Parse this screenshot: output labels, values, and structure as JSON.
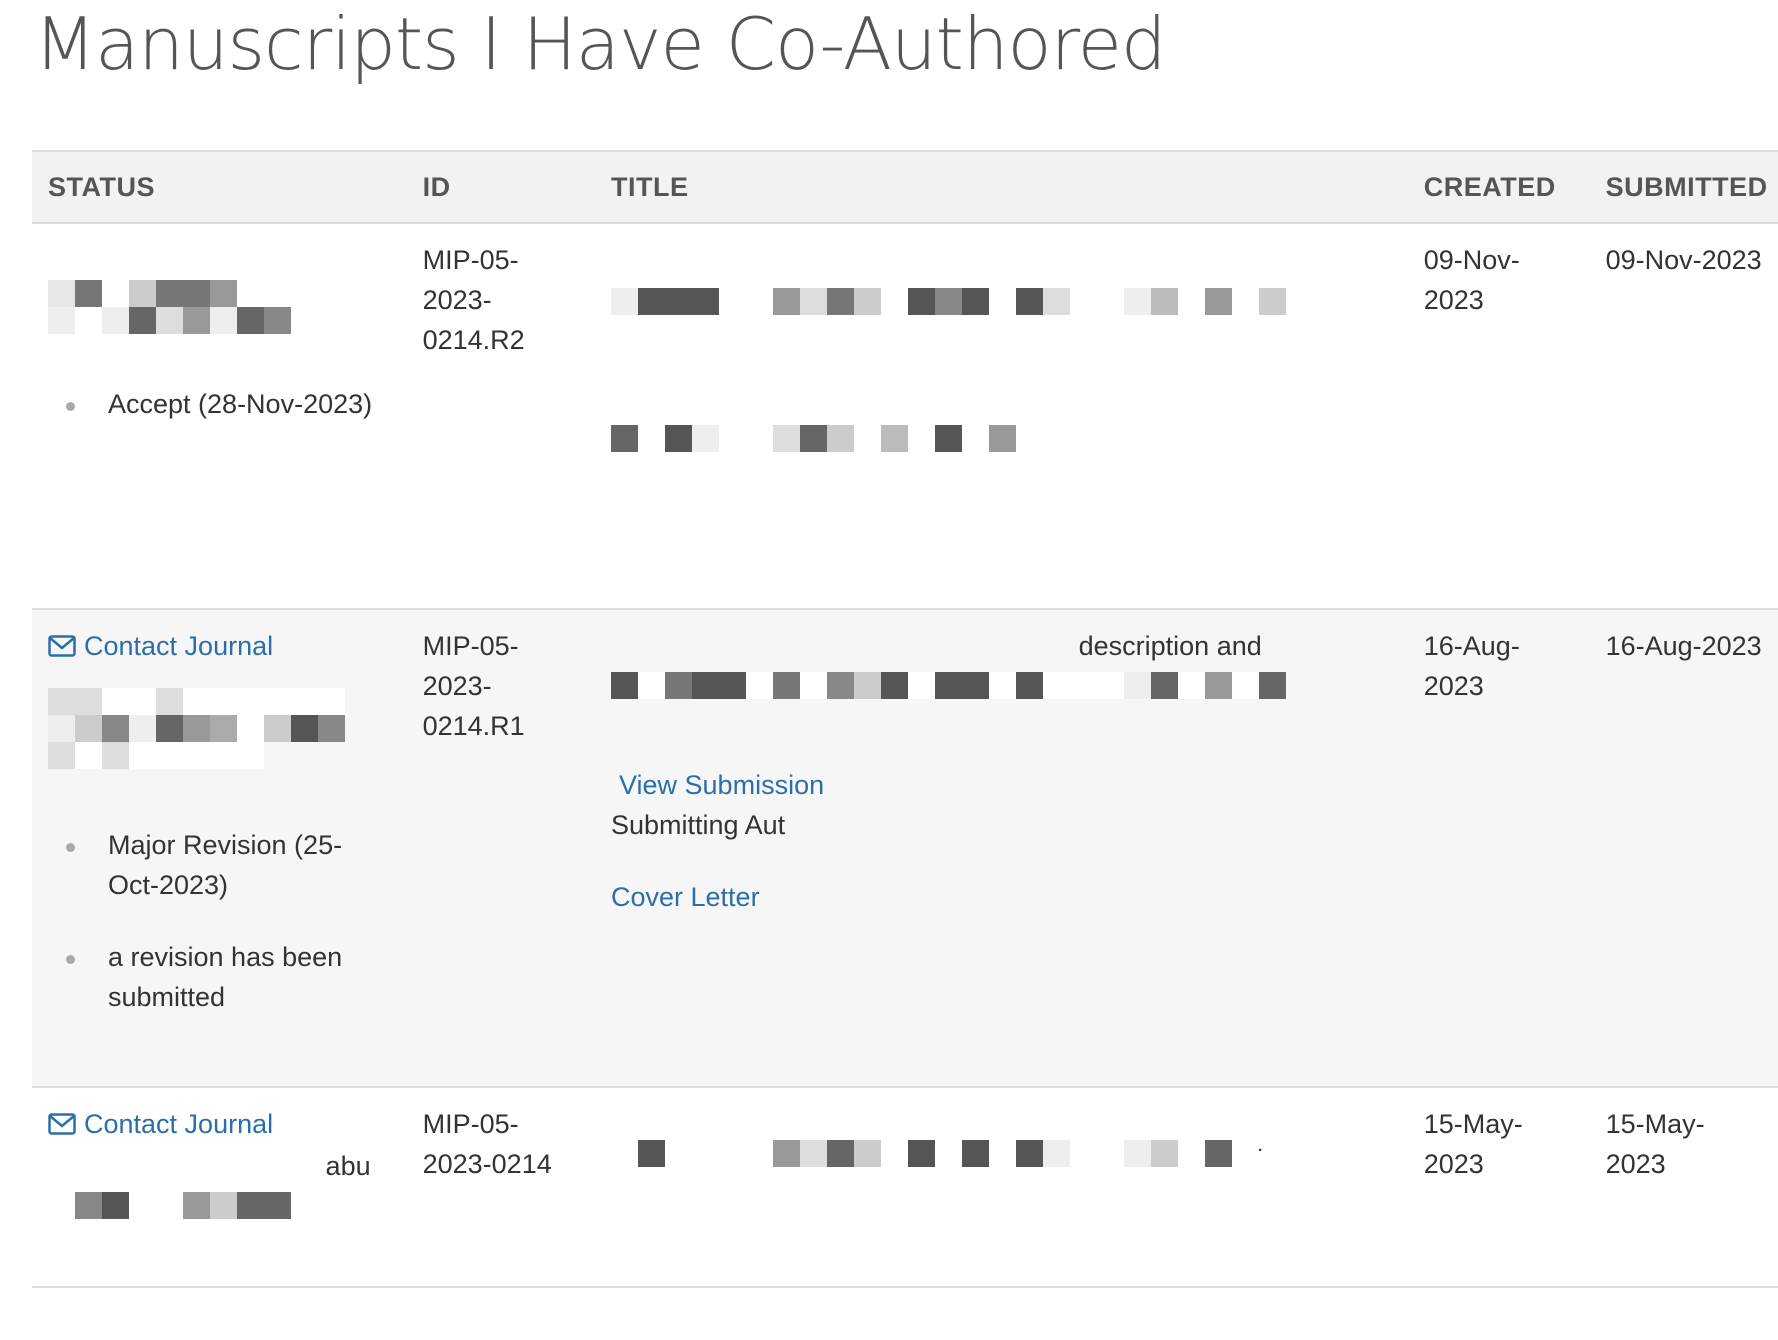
{
  "page": {
    "title": "Manuscripts I Have Co-Authored"
  },
  "table": {
    "headers": {
      "status": "STATUS",
      "id": "ID",
      "title": "TITLE",
      "created": "CREATED",
      "submitted": "SUBMITTED"
    },
    "rows": [
      {
        "id": "MIP-05-2023-0214.R2",
        "status_history": [
          "Accept (28-Nov-2023)"
        ],
        "created": "09-Nov-2023",
        "submitted": "09-Nov-2023"
      },
      {
        "id": "MIP-05-2023-0214.R1",
        "contact_label": "Contact Journal",
        "status_history": [
          "Major Revision (25-Oct-2023)",
          "a revision has been submitted"
        ],
        "title_fragment": "description and",
        "view_submission_label": "View Submission",
        "submitting_author_label": "Submitting Aut",
        "cover_letter_label": "Cover Letter",
        "created": "16-Aug-2023",
        "submitted": "16-Aug-2023"
      },
      {
        "id": "MIP-05-2023-0214",
        "contact_label": "Contact Journal",
        "status_fragment": "abu",
        "title_fragment": "ver",
        "created": "15-May-2023",
        "submitted": "15-May-2023"
      }
    ]
  },
  "colors": {
    "link": "#2b6fa8",
    "header_bg": "#f2f2f2",
    "alt_row_bg": "#f6f6f6"
  }
}
